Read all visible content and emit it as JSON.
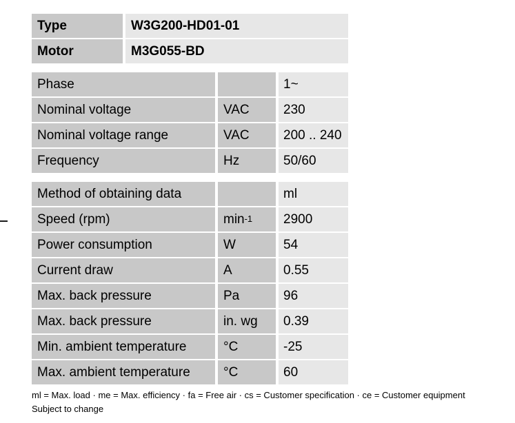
{
  "identification": {
    "rows": [
      {
        "label": "Type",
        "value": "W3G200-HD01-01"
      },
      {
        "label": "Motor",
        "value": "M3G055-BD"
      }
    ]
  },
  "electrical": {
    "rows": [
      {
        "label": "Phase",
        "unit": "",
        "unit_sup": "",
        "value": "1~"
      },
      {
        "label": "Nominal voltage",
        "unit": "VAC",
        "unit_sup": "",
        "value": "230"
      },
      {
        "label": "Nominal voltage range",
        "unit": "VAC",
        "unit_sup": "",
        "value": "200 .. 240"
      },
      {
        "label": "Frequency",
        "unit": "Hz",
        "unit_sup": "",
        "value": "50/60"
      }
    ]
  },
  "performance": {
    "rows": [
      {
        "label": "Method of obtaining data",
        "unit": "",
        "unit_sup": "",
        "value": "ml"
      },
      {
        "label": "Speed (rpm)",
        "unit": "min",
        "unit_sup": "-1",
        "value": "2900"
      },
      {
        "label": "Power consumption",
        "unit": "W",
        "unit_sup": "",
        "value": "54"
      },
      {
        "label": "Current draw",
        "unit": "A",
        "unit_sup": "",
        "value": "0.55"
      },
      {
        "label": "Max. back pressure",
        "unit": "Pa",
        "unit_sup": "",
        "value": "96"
      },
      {
        "label": "Max. back pressure",
        "unit": "in. wg",
        "unit_sup": "",
        "value": "0.39"
      },
      {
        "label": "Min. ambient temperature",
        "unit": "°C",
        "unit_sup": "",
        "value": "-25"
      },
      {
        "label": "Max. ambient temperature",
        "unit": "°C",
        "unit_sup": "",
        "value": "60"
      }
    ]
  },
  "footer": {
    "legend": "ml = Max. load · me = Max. efficiency · fa = Free air · cs = Customer specification · ce = Customer equipment",
    "note": "Subject to change"
  },
  "colors": {
    "cell_dark": "#c8c8c8",
    "cell_light": "#e7e7e7",
    "text": "#000000",
    "background": "#ffffff"
  }
}
